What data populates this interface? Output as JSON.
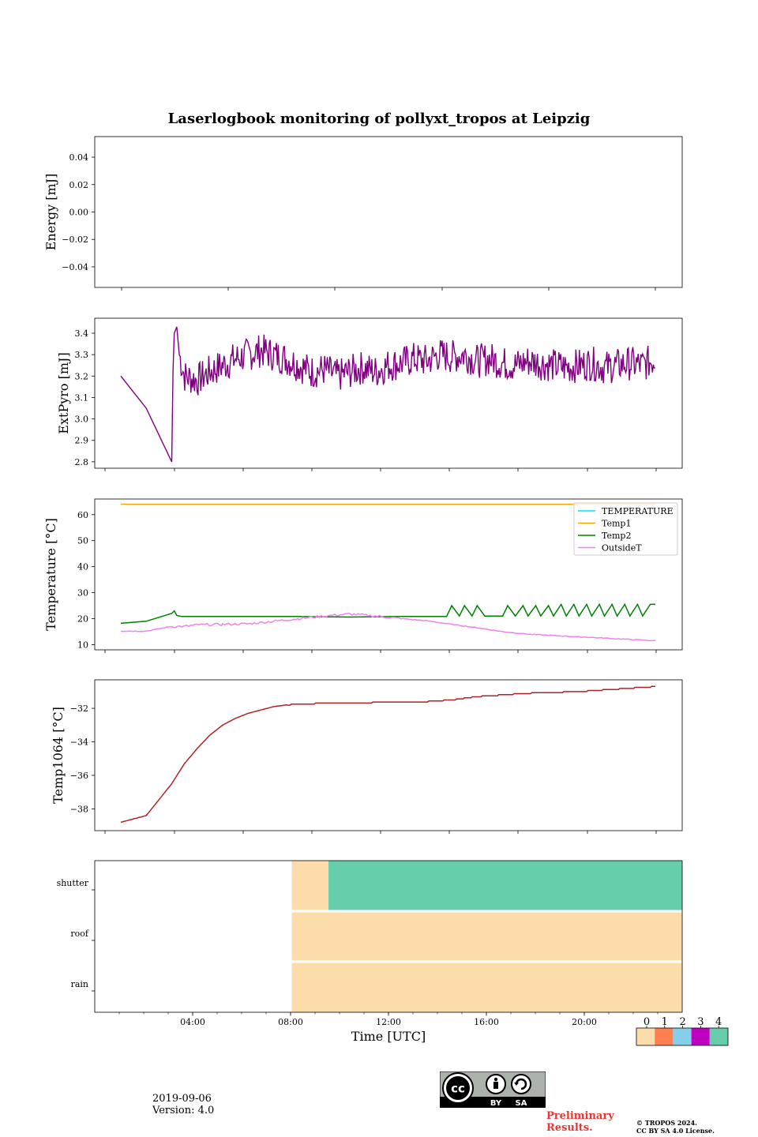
{
  "chart_data": [
    {
      "type": "line",
      "title": "Laserlogbook monitoring of pollyxt_tropos at Leipzig",
      "ylabel": "Energy [mJ]",
      "ylim": [
        -0.055,
        0.055
      ],
      "yticks": [
        "0.04",
        "0.02",
        "0.00",
        "−0.02",
        "−0.04"
      ],
      "ytick_values": [
        0.04,
        0.02,
        0.0,
        -0.02,
        -0.04
      ],
      "series": []
    },
    {
      "type": "line",
      "ylabel": "ExtPyro [mJ]",
      "ylim": [
        2.77,
        3.47
      ],
      "yticks": [
        "3.4",
        "3.3",
        "3.2",
        "3.1",
        "3.0",
        "2.9",
        "2.8"
      ],
      "ytick_values": [
        3.4,
        3.3,
        3.2,
        3.1,
        3.0,
        2.9,
        2.8
      ],
      "series": [
        {
          "name": "ExtPyro",
          "color": "#800080",
          "x": [
            1.0,
            2.0,
            3.0,
            3.05,
            3.1,
            3.2,
            3.3,
            3.5,
            4.0,
            4.5,
            5.0,
            5.5,
            6.0,
            6.5,
            7.0,
            7.5,
            8.0,
            8.5,
            9.0,
            9.5,
            10.0,
            10.5,
            11.0,
            11.5,
            12.0,
            12.5,
            13.0,
            13.5,
            14.0,
            14.5,
            15.0,
            15.5,
            16.0,
            16.5,
            17.0,
            17.5,
            18.0,
            18.5,
            19.0,
            19.5,
            20.0,
            20.5,
            21.0,
            21.5,
            22.0
          ],
          "y": [
            3.2,
            3.05,
            2.8,
            3.22,
            3.4,
            3.43,
            3.3,
            3.2,
            3.18,
            3.22,
            3.25,
            3.28,
            3.3,
            3.32,
            3.3,
            3.28,
            3.25,
            3.22,
            3.23,
            3.2,
            3.22,
            3.24,
            3.22,
            3.25,
            3.26,
            3.28,
            3.27,
            3.3,
            3.29,
            3.3,
            3.27,
            3.28,
            3.26,
            3.25,
            3.27,
            3.26,
            3.25,
            3.24,
            3.25,
            3.26,
            3.24,
            3.25,
            3.26,
            3.25,
            3.28
          ]
        }
      ]
    },
    {
      "type": "line",
      "ylabel": "Temperature [°C]",
      "ylim": [
        8,
        66
      ],
      "yticks": [
        "60",
        "50",
        "40",
        "30",
        "20",
        "10"
      ],
      "ytick_values": [
        60,
        50,
        40,
        30,
        20,
        10
      ],
      "legend_position": "top-right",
      "series": [
        {
          "name": "TEMPERATURE",
          "color": "#00e5ee",
          "x": [],
          "y": []
        },
        {
          "name": "Temp1",
          "color": "#ffa500",
          "x": [
            1.0,
            22.0
          ],
          "y": [
            64,
            64
          ]
        },
        {
          "name": "Temp2",
          "color": "#008000",
          "x": [
            1.0,
            2.0,
            3.0,
            3.1,
            3.2,
            3.4,
            4.0,
            6.0,
            8.0,
            10.0,
            12.0,
            13.8,
            14.0,
            14.3,
            14.5,
            14.8,
            15.0,
            15.3,
            15.5,
            16.0,
            16.2,
            16.5,
            16.8,
            17.0,
            17.3,
            17.5,
            17.8,
            18.0,
            18.3,
            18.5,
            18.8,
            19.0,
            19.3,
            19.5,
            19.8,
            20.0,
            20.3,
            20.5,
            20.8,
            21.0,
            21.3,
            21.5,
            21.8,
            22.0
          ],
          "y": [
            18.2,
            19.0,
            22.0,
            23.0,
            21.2,
            20.8,
            20.8,
            20.8,
            20.8,
            20.6,
            20.8,
            20.8,
            25.0,
            21.0,
            25.0,
            21.0,
            25.0,
            21.0,
            21.0,
            21.0,
            25.0,
            21.0,
            25.0,
            21.0,
            25.0,
            21.0,
            25.0,
            21.0,
            25.5,
            21.0,
            25.5,
            21.0,
            25.5,
            21.0,
            25.5,
            21.0,
            25.5,
            21.0,
            25.5,
            21.0,
            25.5,
            21.0,
            25.5,
            25.5
          ]
        },
        {
          "name": "OutsideT",
          "color": "#ee82ee",
          "x": [
            1.0,
            2.0,
            3.0,
            3.5,
            4.0,
            5.0,
            6.0,
            7.0,
            8.0,
            9.0,
            10.0,
            11.0,
            12.0,
            13.0,
            14.0,
            15.0,
            16.0,
            17.0,
            18.0,
            19.0,
            20.0,
            21.0,
            22.0
          ],
          "y": [
            15.2,
            15.2,
            17.0,
            17.0,
            17.6,
            17.8,
            18.0,
            19.0,
            20.0,
            21.0,
            21.8,
            21.0,
            20.0,
            19.2,
            17.8,
            16.5,
            15.0,
            14.0,
            13.5,
            13.0,
            12.5,
            12.0,
            11.5
          ]
        }
      ]
    },
    {
      "type": "line",
      "ylabel": "Temp1064 [°C]",
      "ylim": [
        -39.3,
        -30.3
      ],
      "yticks": [
        "−32",
        "−34",
        "−36",
        "−38"
      ],
      "ytick_values": [
        -32,
        -34,
        -36,
        -38
      ],
      "series": [
        {
          "name": "Temp1064",
          "color": "#b22222",
          "x": [
            1.0,
            2.0,
            3.0,
            3.5,
            4.0,
            4.5,
            5.0,
            5.5,
            6.0,
            6.5,
            7.0,
            7.5,
            8.0,
            9.0,
            10.0,
            11.0,
            12.0,
            13.0,
            14.0,
            15.0,
            16.0,
            17.0,
            18.0,
            19.0,
            20.0,
            21.0,
            22.0
          ],
          "y": [
            -38.8,
            -38.4,
            -36.5,
            -35.3,
            -34.4,
            -33.6,
            -33.0,
            -32.6,
            -32.3,
            -32.1,
            -31.9,
            -31.8,
            -31.75,
            -31.7,
            -31.7,
            -31.65,
            -31.65,
            -31.6,
            -31.5,
            -31.3,
            -31.2,
            -31.1,
            -31.05,
            -31.0,
            -30.9,
            -30.8,
            -30.7
          ]
        }
      ]
    },
    {
      "type": "heatmap",
      "xlabel": "Time [UTC]",
      "xticks": [
        "04:00",
        "08:00",
        "12:00",
        "16:00",
        "20:00"
      ],
      "xtick_values": [
        4,
        8,
        12,
        16,
        20
      ],
      "xlim": [
        0,
        24
      ],
      "rows": [
        "shutter",
        "roof",
        "rain"
      ],
      "cells": [
        {
          "row": "shutter",
          "start": 8.05,
          "end": 9.55,
          "state": 0
        },
        {
          "row": "shutter",
          "start": 9.55,
          "end": 24.0,
          "state": 4
        },
        {
          "row": "roof",
          "start": 8.05,
          "end": 24.0,
          "state": 0
        },
        {
          "row": "rain",
          "start": 8.05,
          "end": 24.0,
          "state": 0
        }
      ],
      "colorbar": {
        "labels": [
          "0",
          "1",
          "2",
          "3",
          "4"
        ],
        "colors": [
          "#fddcac",
          "#ff7f50",
          "#87ceeb",
          "#c000c0",
          "#66cdaa"
        ]
      }
    }
  ],
  "footer": {
    "date": "2019-09-06",
    "version": "Version: 4.0",
    "preliminary_line1": "Preliminary",
    "preliminary_line2": "Results.",
    "copyright_line1": "© TROPOS 2024.",
    "copyright_line2": "CC BY SA 4.0 License.",
    "license_by": "BY",
    "license_sa": "SA"
  }
}
